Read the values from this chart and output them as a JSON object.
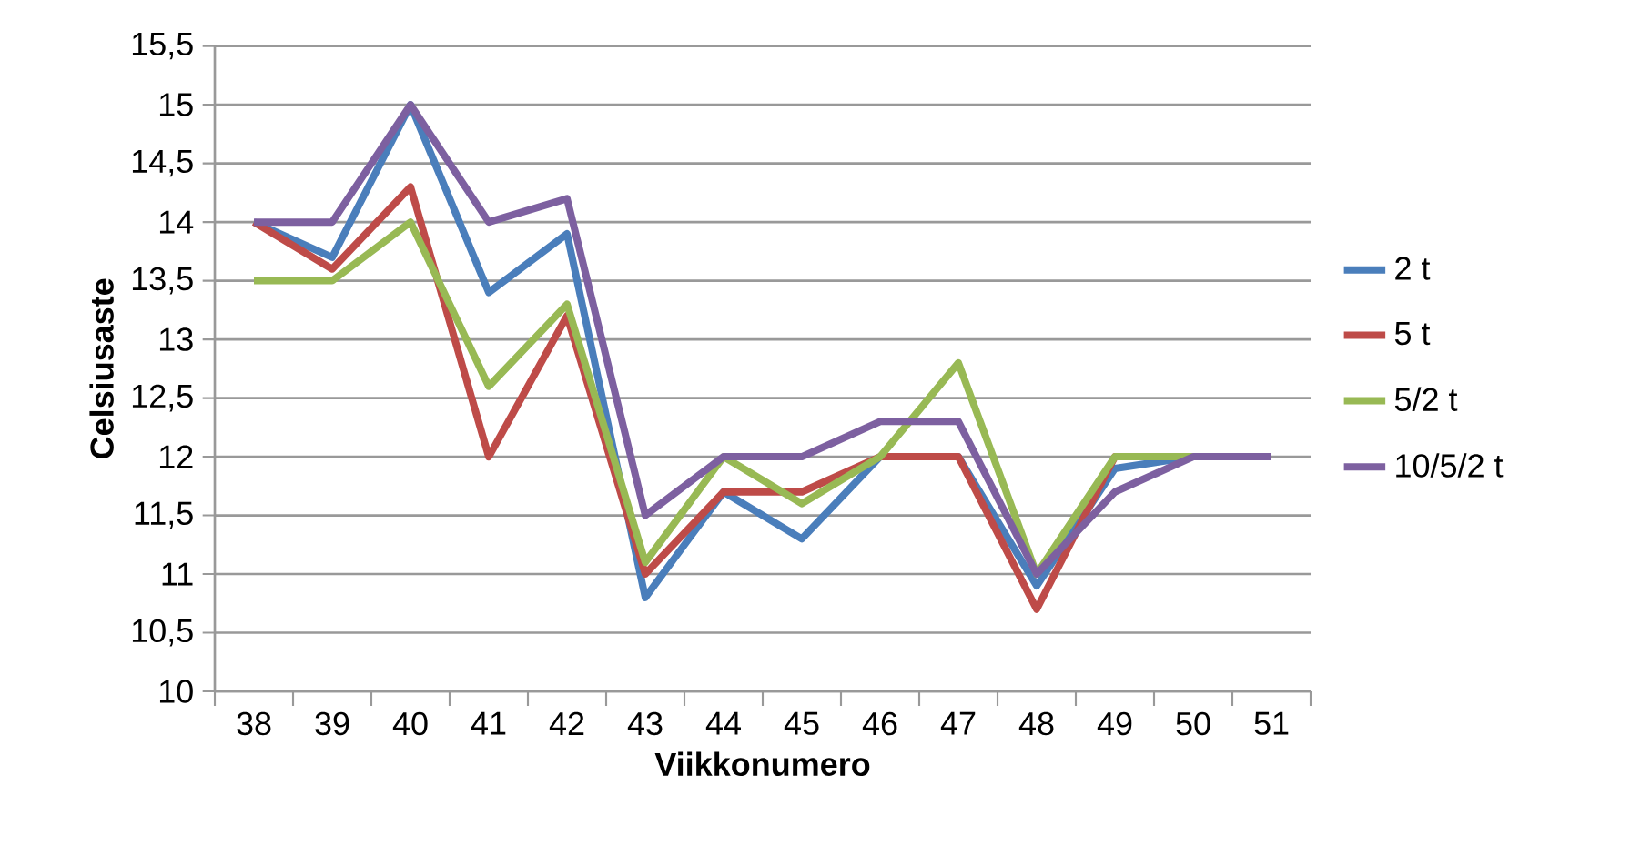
{
  "chart_data": {
    "type": "line",
    "xlabel": "Viikkonumero",
    "ylabel": "Celsiusaste",
    "categories": [
      "38",
      "39",
      "40",
      "41",
      "42",
      "43",
      "44",
      "45",
      "46",
      "47",
      "48",
      "49",
      "50",
      "51"
    ],
    "series": [
      {
        "name": "2 t",
        "color": "#4a7ebb",
        "values": [
          14,
          13.7,
          15,
          13.4,
          13.9,
          10.8,
          11.7,
          11.3,
          12,
          12,
          10.9,
          11.9,
          12,
          12
        ]
      },
      {
        "name": "5 t",
        "color": "#be4b48",
        "values": [
          14,
          13.6,
          14.3,
          12,
          13.2,
          11,
          11.7,
          11.7,
          12,
          12,
          10.7,
          12,
          12,
          12
        ]
      },
      {
        "name": "5/2 t",
        "color": "#98b954",
        "values": [
          13.5,
          13.5,
          14,
          12.6,
          13.3,
          11.1,
          12,
          11.6,
          12,
          12.8,
          11,
          12,
          12,
          12
        ]
      },
      {
        "name": "10/5/2 t",
        "color": "#7d60a0",
        "values": [
          14,
          14,
          15,
          14,
          14.2,
          11.5,
          12,
          12,
          12.3,
          12.3,
          11,
          11.7,
          12,
          12
        ]
      }
    ],
    "ylim": [
      10,
      15.5
    ],
    "yticks": [
      10,
      {
        "value": 10.5,
        "label": "10,5"
      },
      11,
      {
        "value": 11.5,
        "label": "11,5"
      },
      12,
      {
        "value": 12.5,
        "label": "12,5"
      },
      13,
      {
        "value": 13.5,
        "label": "13,5"
      },
      14,
      {
        "value": 14.5,
        "label": "14,5"
      },
      15,
      {
        "value": 15.5,
        "label": "15,5"
      }
    ],
    "grid": "y",
    "legend": "right",
    "marker": "none",
    "line_style": "solid"
  }
}
